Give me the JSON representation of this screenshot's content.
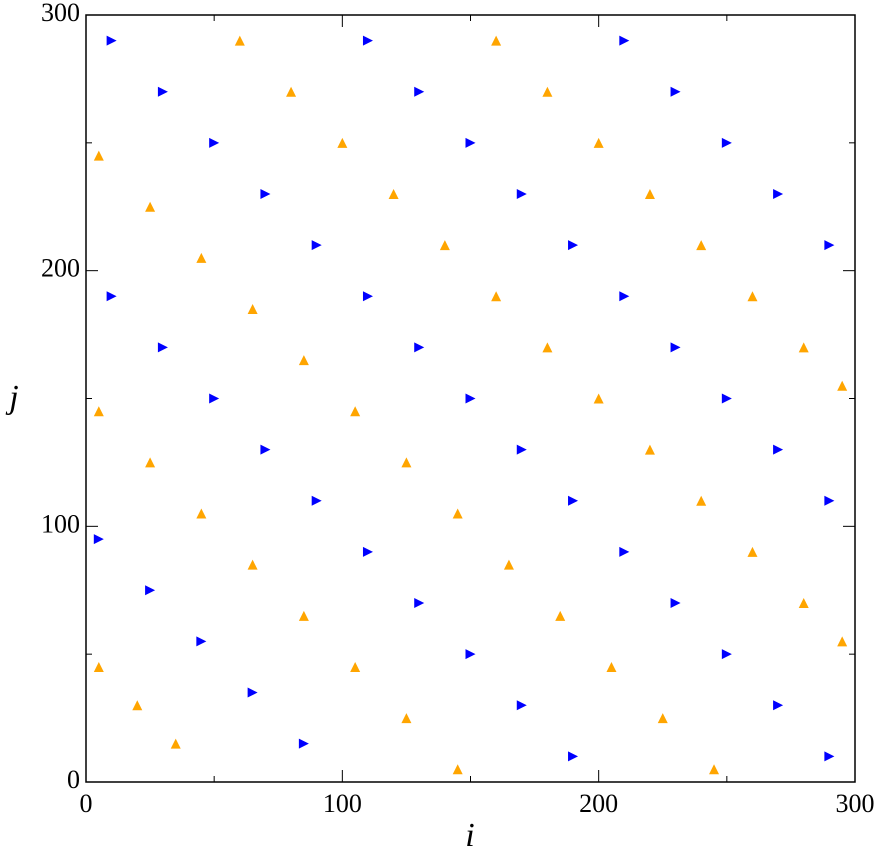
{
  "chart_data": {
    "type": "scatter",
    "xlabel": "i",
    "ylabel": "j",
    "xlim": [
      0,
      300
    ],
    "ylim": [
      0,
      300
    ],
    "xticks": [
      0,
      100,
      200,
      300
    ],
    "yticks": [
      0,
      100,
      200,
      300
    ],
    "xticks_minor": [
      50,
      150,
      250
    ],
    "yticks_minor": [
      50,
      150,
      250
    ],
    "series": [
      {
        "color": "#0000ff",
        "marker": "triangle-right",
        "x": [
          10,
          30,
          50,
          70,
          90,
          110,
          130,
          150,
          170,
          190,
          210,
          230,
          250,
          270,
          290,
          110,
          130,
          150,
          170,
          190,
          210,
          230,
          250,
          270,
          290,
          10,
          30,
          50,
          70,
          90,
          110,
          130,
          150,
          170,
          190,
          5,
          25,
          45,
          65,
          85,
          210,
          230,
          250,
          270,
          290
        ],
        "values": [
          290,
          270,
          250,
          230,
          210,
          190,
          170,
          150,
          130,
          110,
          90,
          70,
          50,
          30,
          10,
          290,
          270,
          250,
          230,
          210,
          190,
          170,
          150,
          130,
          110,
          190,
          170,
          150,
          130,
          110,
          90,
          70,
          50,
          30,
          10,
          95,
          75,
          55,
          35,
          15,
          290,
          270,
          250,
          230,
          210
        ]
      },
      {
        "color": "#ffa500",
        "marker": "triangle-up",
        "x": [
          60,
          80,
          100,
          120,
          140,
          160,
          180,
          200,
          220,
          240,
          260,
          280,
          295,
          5,
          25,
          45,
          65,
          85,
          105,
          125,
          145,
          165,
          185,
          205,
          225,
          245,
          5,
          25,
          45,
          65,
          85,
          105,
          125,
          145,
          160,
          180,
          200,
          220,
          240,
          260,
          280,
          295,
          5,
          20,
          35
        ],
        "values": [
          290,
          270,
          250,
          230,
          210,
          190,
          170,
          150,
          130,
          110,
          90,
          70,
          55,
          245,
          225,
          205,
          185,
          165,
          145,
          125,
          105,
          85,
          65,
          45,
          25,
          5,
          145,
          125,
          105,
          85,
          65,
          45,
          25,
          5,
          290,
          270,
          250,
          230,
          210,
          190,
          170,
          155,
          45,
          30,
          15
        ]
      }
    ]
  }
}
